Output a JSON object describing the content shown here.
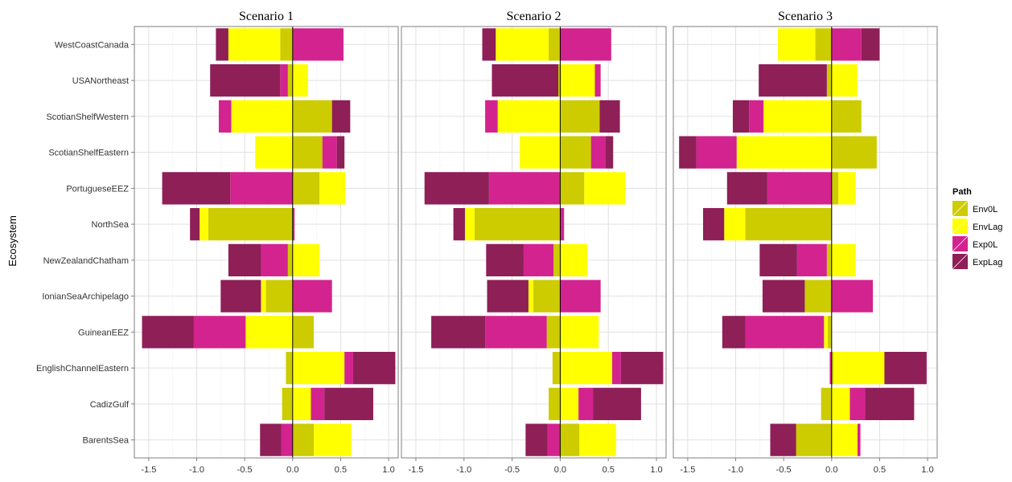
{
  "chart_data": {
    "type": "bar",
    "orientation": "horizontal",
    "stacked": "diverging",
    "ylabel": "Ecosystem",
    "xlim": [
      -1.65,
      1.1
    ],
    "xticks": [
      -1.5,
      -1.0,
      -0.5,
      0.0,
      0.5,
      1.0
    ],
    "xtick_labels": [
      "-1.5",
      "-1.0",
      "-0.5",
      "0.0",
      "0.5",
      "1.0"
    ],
    "grid": true,
    "legend": {
      "title": "Path",
      "position": "right",
      "entries": [
        {
          "name": "Env0L",
          "color": "#cccc00"
        },
        {
          "name": "EnvLag",
          "color": "#ffff00"
        },
        {
          "name": "Exp0L",
          "color": "#d3238f"
        },
        {
          "name": "ExpLag",
          "color": "#8e1f57"
        }
      ]
    },
    "categories": [
      "WestCoastCanada",
      "USANortheast",
      "ScotianShelfWestern",
      "ScotianShelfEastern",
      "PortugueseEEZ",
      "NorthSea",
      "NewZealandChatham",
      "IonianSeaArchipelago",
      "GuineanEEZ",
      "EnglishChannelEastern",
      "CadizGulf",
      "BarentsSea"
    ],
    "panels": [
      {
        "title": "Scenario 1",
        "series": [
          {
            "name": "Env0L",
            "values": [
              -0.13,
              -0.05,
              0.41,
              0.31,
              0.28,
              -0.88,
              -0.05,
              -0.28,
              0.22,
              -0.07,
              -0.11,
              0.22
            ]
          },
          {
            "name": "EnvLag",
            "values": [
              -0.54,
              0.16,
              -0.64,
              -0.39,
              0.27,
              -0.09,
              0.28,
              -0.05,
              -0.49,
              0.54,
              0.19,
              0.39
            ]
          },
          {
            "name": "Exp0L",
            "values": [
              0.53,
              -0.08,
              -0.13,
              0.15,
              -0.65,
              0.02,
              -0.28,
              0.41,
              -0.54,
              0.09,
              0.14,
              -0.12
            ]
          },
          {
            "name": "ExpLag",
            "values": [
              -0.13,
              -0.73,
              0.19,
              0.08,
              -0.71,
              -0.1,
              -0.34,
              -0.42,
              -0.54,
              0.44,
              0.51,
              -0.22
            ]
          }
        ]
      },
      {
        "title": "Scenario 2",
        "series": [
          {
            "name": "Env0L",
            "values": [
              -0.12,
              -0.02,
              0.41,
              0.32,
              0.25,
              -0.89,
              -0.07,
              -0.28,
              -0.14,
              -0.08,
              -0.12,
              0.2
            ]
          },
          {
            "name": "EnvLag",
            "values": [
              -0.55,
              0.36,
              -0.65,
              -0.42,
              0.43,
              -0.1,
              0.28,
              -0.05,
              0.4,
              0.54,
              0.19,
              0.38
            ]
          },
          {
            "name": "Exp0L",
            "values": [
              0.53,
              0.06,
              -0.13,
              0.15,
              -0.74,
              0.04,
              -0.31,
              0.42,
              -0.64,
              0.09,
              0.15,
              -0.13
            ]
          },
          {
            "name": "ExpLag",
            "values": [
              -0.14,
              -0.69,
              0.21,
              0.08,
              -0.67,
              -0.12,
              -0.39,
              -0.43,
              -0.56,
              0.44,
              0.5,
              -0.23
            ]
          }
        ]
      },
      {
        "title": "Scenario 3",
        "series": [
          {
            "name": "Env0L",
            "values": [
              -0.17,
              -0.05,
              0.31,
              0.47,
              0.07,
              -0.9,
              -0.05,
              -0.28,
              -0.04,
              0.02,
              -0.11,
              -0.37
            ]
          },
          {
            "name": "EnvLag",
            "values": [
              -0.39,
              0.27,
              -0.71,
              -0.99,
              0.18,
              -0.22,
              0.25,
              0.0,
              -0.04,
              0.53,
              0.19,
              0.27
            ]
          },
          {
            "name": "Exp0L",
            "values": [
              0.31,
              0.0,
              -0.15,
              -0.42,
              -0.67,
              0.0,
              -0.31,
              0.43,
              -0.82,
              -0.02,
              0.16,
              0.03
            ]
          },
          {
            "name": "ExpLag",
            "values": [
              0.19,
              -0.71,
              -0.17,
              -0.18,
              -0.42,
              -0.22,
              -0.39,
              -0.44,
              -0.24,
              0.44,
              0.51,
              -0.27
            ]
          }
        ]
      }
    ]
  }
}
